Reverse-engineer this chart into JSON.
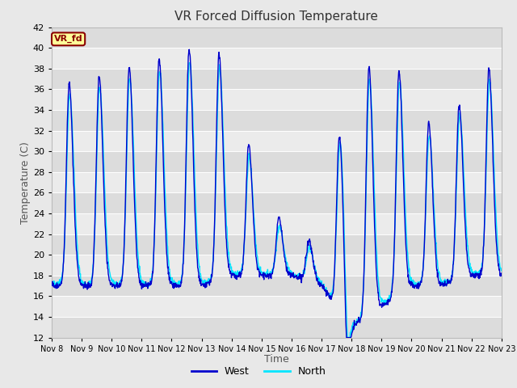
{
  "title": "VR Forced Diffusion Temperature",
  "xlabel": "Time",
  "ylabel": "Temperature (C)",
  "ylim": [
    12,
    42
  ],
  "yticks": [
    12,
    14,
    16,
    18,
    20,
    22,
    24,
    26,
    28,
    30,
    32,
    34,
    36,
    38,
    40,
    42
  ],
  "xtick_labels": [
    "Nov 8",
    "Nov 9",
    "Nov 10",
    "Nov 11",
    "Nov 12",
    "Nov 13",
    "Nov 14",
    "Nov 15",
    "Nov 16",
    "Nov 17",
    "Nov 18",
    "Nov 19",
    "Nov 20",
    "Nov 21",
    "Nov 22",
    "Nov 23"
  ],
  "west_color": "#0000CD",
  "north_color": "#00E5FF",
  "bg_color": "#E8E8E8",
  "band_light": "#EBEBEB",
  "band_dark": "#DCDCDC",
  "grid_color": "#FFFFFF",
  "annotation_text": "VR_fd",
  "annotation_bg": "#FFFF99",
  "annotation_fg": "#8B0000",
  "legend_west": "West",
  "legend_north": "North",
  "linewidth": 1.0,
  "title_fontsize": 11,
  "axis_label_fontsize": 9,
  "tick_fontsize": 8
}
